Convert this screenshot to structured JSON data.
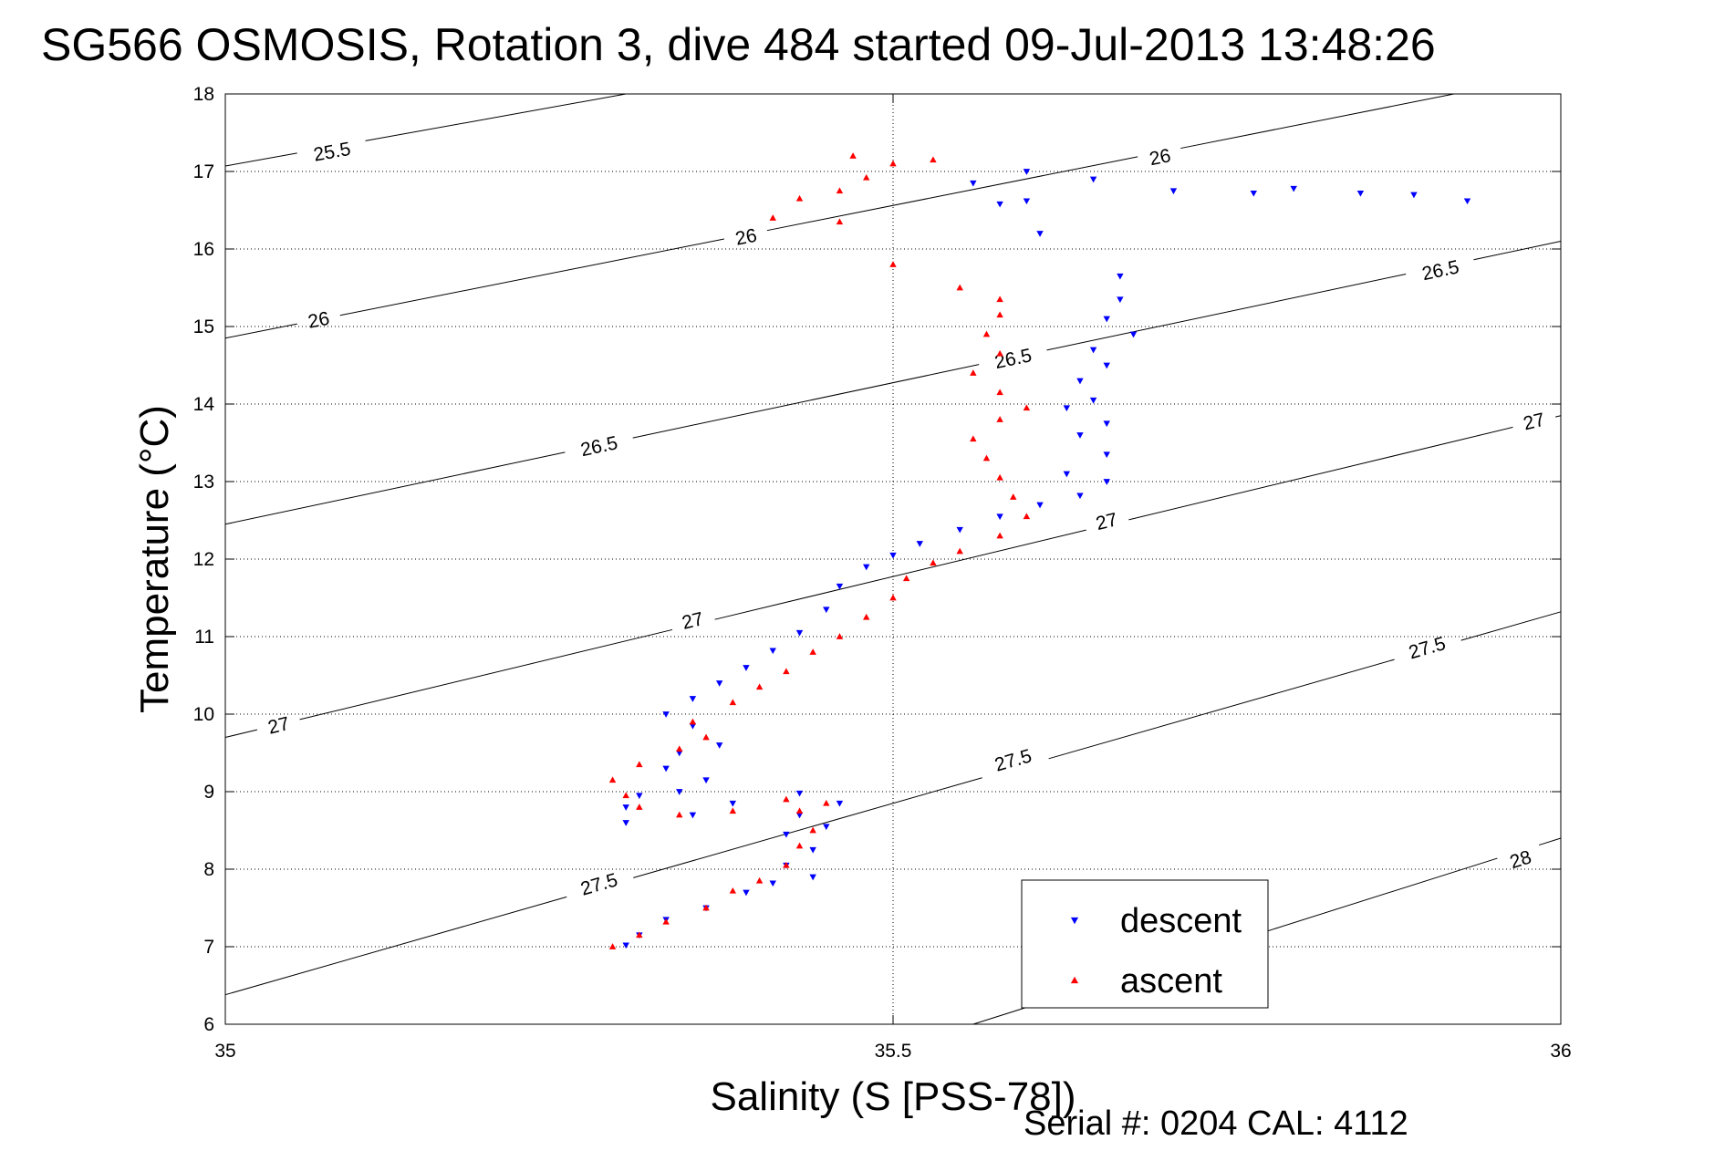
{
  "chart_data": {
    "type": "scatter",
    "title": "SG566 OSMOSIS, Rotation 3, dive 484 started 09-Jul-2013 13:48:26",
    "xlabel": "Salinity (S [PSS-78])",
    "ylabel": "Temperature (°C)",
    "xlim": [
      35,
      36
    ],
    "ylim": [
      6,
      18
    ],
    "xticks": [
      35,
      35.5,
      36
    ],
    "xtick_labels": [
      "35",
      "35.5",
      "36"
    ],
    "yticks": [
      6,
      7,
      8,
      9,
      10,
      11,
      12,
      13,
      14,
      15,
      16,
      17,
      18
    ],
    "ytick_labels": [
      "6",
      "7",
      "8",
      "9",
      "10",
      "11",
      "12",
      "13",
      "14",
      "15",
      "16",
      "17",
      "18"
    ],
    "grid": true,
    "legend_position": "bottom-right",
    "footer": "Serial #: 0204  CAL: 4112",
    "contours": [
      {
        "label": "25.5",
        "points": [
          [
            35,
            17.07
          ],
          [
            35.3,
            18.0
          ]
        ],
        "label_at": [
          [
            35.08,
            17.25
          ]
        ]
      },
      {
        "label": "26",
        "points": [
          [
            35,
            14.85
          ],
          [
            35.92,
            18.0
          ]
        ],
        "label_at": [
          [
            35.07,
            15.08
          ],
          [
            35.39,
            16.15
          ],
          [
            35.7,
            17.18
          ]
        ]
      },
      {
        "label": "26.5",
        "points": [
          [
            35,
            12.45
          ],
          [
            36,
            16.1
          ]
        ],
        "label_at": [
          [
            35.28,
            13.45
          ],
          [
            35.59,
            14.58
          ],
          [
            35.91,
            15.72
          ]
        ]
      },
      {
        "label": "27",
        "points": [
          [
            35,
            9.7
          ],
          [
            36,
            13.85
          ]
        ],
        "label_at": [
          [
            35.04,
            9.85
          ],
          [
            35.35,
            11.2
          ],
          [
            35.66,
            12.48
          ],
          [
            35.98,
            13.77
          ]
        ]
      },
      {
        "label": "27.5",
        "points": [
          [
            35,
            6.38
          ],
          [
            36,
            11.32
          ]
        ],
        "label_at": [
          [
            35.28,
            7.8
          ],
          [
            35.59,
            9.4
          ],
          [
            35.9,
            10.85
          ]
        ]
      },
      {
        "label": "28",
        "points": [
          [
            35.56,
            6.0
          ],
          [
            36,
            8.4
          ]
        ],
        "label_at": [
          [
            35.97,
            8.12
          ]
        ]
      }
    ],
    "series": [
      {
        "name": "descent",
        "color": "#0000ff",
        "marker": "triangle-down",
        "points": [
          [
            35.6,
            17.0
          ],
          [
            35.65,
            16.9
          ],
          [
            35.71,
            16.75
          ],
          [
            35.77,
            16.72
          ],
          [
            35.8,
            16.78
          ],
          [
            35.85,
            16.72
          ],
          [
            35.89,
            16.7
          ],
          [
            35.93,
            16.62
          ],
          [
            35.56,
            16.85
          ],
          [
            35.58,
            16.58
          ],
          [
            35.6,
            16.62
          ],
          [
            35.61,
            16.2
          ],
          [
            35.67,
            15.65
          ],
          [
            35.67,
            15.35
          ],
          [
            35.66,
            15.1
          ],
          [
            35.68,
            14.9
          ],
          [
            35.65,
            14.7
          ],
          [
            35.66,
            14.5
          ],
          [
            35.64,
            14.3
          ],
          [
            35.65,
            14.05
          ],
          [
            35.63,
            13.95
          ],
          [
            35.66,
            13.75
          ],
          [
            35.64,
            13.6
          ],
          [
            35.66,
            13.35
          ],
          [
            35.63,
            13.1
          ],
          [
            35.66,
            13.0
          ],
          [
            35.64,
            12.82
          ],
          [
            35.61,
            12.7
          ],
          [
            35.58,
            12.55
          ],
          [
            35.55,
            12.38
          ],
          [
            35.52,
            12.2
          ],
          [
            35.5,
            12.05
          ],
          [
            35.48,
            11.9
          ],
          [
            35.46,
            11.65
          ],
          [
            35.45,
            11.35
          ],
          [
            35.43,
            11.05
          ],
          [
            35.41,
            10.82
          ],
          [
            35.39,
            10.6
          ],
          [
            35.37,
            10.4
          ],
          [
            35.35,
            10.2
          ],
          [
            35.33,
            10.0
          ],
          [
            35.35,
            9.85
          ],
          [
            35.37,
            9.6
          ],
          [
            35.34,
            9.5
          ],
          [
            35.33,
            9.3
          ],
          [
            35.36,
            9.15
          ],
          [
            35.34,
            9.0
          ],
          [
            35.31,
            8.95
          ],
          [
            35.3,
            8.8
          ],
          [
            35.3,
            8.6
          ],
          [
            35.35,
            8.7
          ],
          [
            35.38,
            8.85
          ],
          [
            35.43,
            8.98
          ],
          [
            35.46,
            8.85
          ],
          [
            35.43,
            8.7
          ],
          [
            35.45,
            8.55
          ],
          [
            35.42,
            8.45
          ],
          [
            35.44,
            8.25
          ],
          [
            35.42,
            8.05
          ],
          [
            35.44,
            7.9
          ],
          [
            35.41,
            7.82
          ],
          [
            35.39,
            7.7
          ],
          [
            35.36,
            7.5
          ],
          [
            35.33,
            7.35
          ],
          [
            35.31,
            7.15
          ],
          [
            35.3,
            7.02
          ]
        ]
      },
      {
        "name": "ascent",
        "color": "#ff0000",
        "marker": "triangle-up",
        "points": [
          [
            35.29,
            7.0
          ],
          [
            35.31,
            7.15
          ],
          [
            35.33,
            7.32
          ],
          [
            35.36,
            7.5
          ],
          [
            35.38,
            7.72
          ],
          [
            35.4,
            7.85
          ],
          [
            35.42,
            8.05
          ],
          [
            35.43,
            8.3
          ],
          [
            35.44,
            8.5
          ],
          [
            35.43,
            8.75
          ],
          [
            35.45,
            8.85
          ],
          [
            35.42,
            8.9
          ],
          [
            35.38,
            8.75
          ],
          [
            35.34,
            8.7
          ],
          [
            35.31,
            8.8
          ],
          [
            35.3,
            8.95
          ],
          [
            35.29,
            9.15
          ],
          [
            35.31,
            9.35
          ],
          [
            35.34,
            9.55
          ],
          [
            35.36,
            9.7
          ],
          [
            35.35,
            9.9
          ],
          [
            35.38,
            10.15
          ],
          [
            35.4,
            10.35
          ],
          [
            35.42,
            10.55
          ],
          [
            35.44,
            10.8
          ],
          [
            35.46,
            11.0
          ],
          [
            35.48,
            11.25
          ],
          [
            35.5,
            11.5
          ],
          [
            35.51,
            11.75
          ],
          [
            35.53,
            11.95
          ],
          [
            35.55,
            12.1
          ],
          [
            35.58,
            12.3
          ],
          [
            35.6,
            12.55
          ],
          [
            35.59,
            12.8
          ],
          [
            35.58,
            13.05
          ],
          [
            35.57,
            13.3
          ],
          [
            35.56,
            13.55
          ],
          [
            35.58,
            13.8
          ],
          [
            35.6,
            13.95
          ],
          [
            35.58,
            14.15
          ],
          [
            35.56,
            14.4
          ],
          [
            35.58,
            14.65
          ],
          [
            35.57,
            14.9
          ],
          [
            35.58,
            15.15
          ],
          [
            35.58,
            15.35
          ],
          [
            35.55,
            15.5
          ],
          [
            35.5,
            15.8
          ],
          [
            35.46,
            16.35
          ],
          [
            35.41,
            16.4
          ],
          [
            35.43,
            16.65
          ],
          [
            35.46,
            16.75
          ],
          [
            35.48,
            16.92
          ],
          [
            35.5,
            17.1
          ],
          [
            35.53,
            17.15
          ],
          [
            35.47,
            17.2
          ]
        ]
      }
    ]
  }
}
